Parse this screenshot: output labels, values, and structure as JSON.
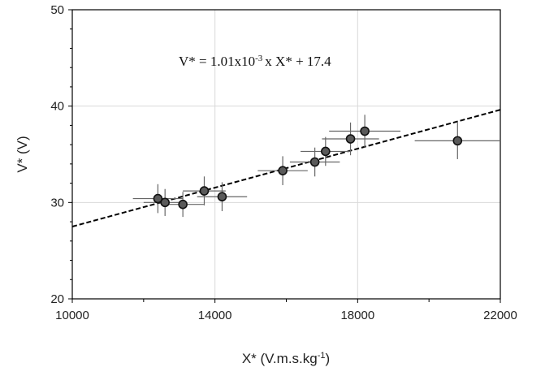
{
  "chart_data": {
    "type": "scatter",
    "xlabel": "X* (V.m.s.kg",
    "xlabel_sup": "-1",
    "xlabel_end": ")",
    "ylabel": "V* (V)",
    "xlim": [
      10000,
      22000
    ],
    "ylim": [
      20,
      50
    ],
    "xticks": [
      "10000",
      "14000",
      "18000",
      "22000"
    ],
    "yticks": [
      "20",
      "30",
      "40",
      "50"
    ],
    "grid": true,
    "annotation": {
      "prefix": "V* = 1.01x10",
      "sup": "-3",
      "suffix": "x X* + 17.4"
    },
    "fit": {
      "slope": 0.00101,
      "intercept": 17.4
    },
    "points": [
      {
        "x": 12400,
        "y": 30.4,
        "xerr": 700,
        "yerr": 1.5
      },
      {
        "x": 12600,
        "y": 30.0,
        "xerr": 600,
        "yerr": 1.4
      },
      {
        "x": 13100,
        "y": 29.8,
        "xerr": 600,
        "yerr": 1.3
      },
      {
        "x": 13700,
        "y": 31.2,
        "xerr": 600,
        "yerr": 1.5
      },
      {
        "x": 14200,
        "y": 30.6,
        "xerr": 700,
        "yerr": 1.5
      },
      {
        "x": 15900,
        "y": 33.3,
        "xerr": 700,
        "yerr": 1.5
      },
      {
        "x": 16800,
        "y": 34.2,
        "xerr": 700,
        "yerr": 1.5
      },
      {
        "x": 17100,
        "y": 35.3,
        "xerr": 700,
        "yerr": 1.5
      },
      {
        "x": 17800,
        "y": 36.6,
        "xerr": 800,
        "yerr": 1.7
      },
      {
        "x": 18200,
        "y": 37.4,
        "xerr": 1000,
        "yerr": 1.7
      },
      {
        "x": 20800,
        "y": 36.4,
        "xerr": 1200,
        "yerr": 1.9
      }
    ]
  }
}
